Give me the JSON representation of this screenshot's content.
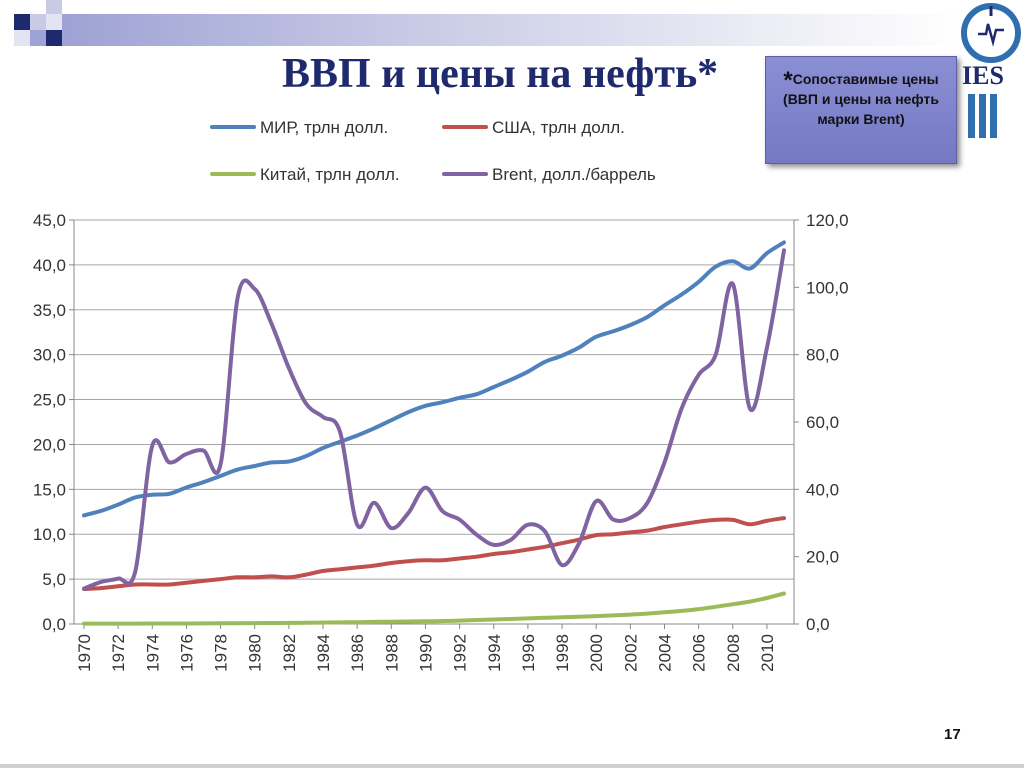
{
  "header": {
    "title": "ВВП и цены на нефть*",
    "note_star": "*",
    "note_text": "Сопоставимые цены (ВВП и цены на нефть марки Brent)",
    "logo_text": "IES",
    "page_number": "17"
  },
  "colors": {
    "world": "#4f81bd",
    "usa": "#c0504d",
    "china": "#9bbb59",
    "brent": "#8064a2",
    "title": "#1f2a6e",
    "note_bg": "#7b7fca"
  },
  "chart_data": {
    "type": "line",
    "title": "",
    "xlabel": "",
    "ylabel": "",
    "ylabel_right": "",
    "x": [
      1970,
      1971,
      1972,
      1973,
      1974,
      1975,
      1976,
      1977,
      1978,
      1979,
      1980,
      1981,
      1982,
      1983,
      1984,
      1985,
      1986,
      1987,
      1988,
      1989,
      1990,
      1991,
      1992,
      1993,
      1994,
      1995,
      1996,
      1997,
      1998,
      1999,
      2000,
      2001,
      2002,
      2003,
      2004,
      2005,
      2006,
      2007,
      2008,
      2009,
      2010,
      2011
    ],
    "x_tick_labels": [
      "1970",
      "1972",
      "1974",
      "1976",
      "1978",
      "1980",
      "1982",
      "1984",
      "1986",
      "1988",
      "1990",
      "1992",
      "1994",
      "1996",
      "1998",
      "2000",
      "2002",
      "2004",
      "2006",
      "2008",
      "2010"
    ],
    "ylim_left": [
      0,
      45
    ],
    "yticks_left": [
      "0,0",
      "5,0",
      "10,0",
      "15,0",
      "20,0",
      "25,0",
      "30,0",
      "35,0",
      "40,0",
      "45,0"
    ],
    "ylim_right": [
      0,
      120
    ],
    "yticks_right": [
      "0,0",
      "20,0",
      "40,0",
      "60,0",
      "80,0",
      "100,0",
      "120,0"
    ],
    "grid": true,
    "legend_position": "top",
    "series": [
      {
        "name": "МИР, трлн долл.",
        "axis": "left",
        "color": "#4f81bd",
        "values": [
          12.1,
          12.6,
          13.3,
          14.1,
          14.4,
          14.5,
          15.2,
          15.8,
          16.5,
          17.2,
          17.6,
          18.0,
          18.1,
          18.7,
          19.6,
          20.3,
          21.0,
          21.8,
          22.7,
          23.6,
          24.3,
          24.7,
          25.2,
          25.6,
          26.4,
          27.2,
          28.1,
          29.2,
          29.9,
          30.8,
          32.0,
          32.6,
          33.3,
          34.2,
          35.5,
          36.7,
          38.1,
          39.8,
          40.4,
          39.6,
          41.3,
          42.5
        ]
      },
      {
        "name": "США, трлн долл.",
        "axis": "left",
        "color": "#c0504d",
        "values": [
          3.9,
          4.0,
          4.2,
          4.4,
          4.4,
          4.4,
          4.6,
          4.8,
          5.0,
          5.2,
          5.2,
          5.3,
          5.2,
          5.5,
          5.9,
          6.1,
          6.3,
          6.5,
          6.8,
          7.0,
          7.1,
          7.1,
          7.3,
          7.5,
          7.8,
          8.0,
          8.3,
          8.6,
          9.0,
          9.4,
          9.9,
          10.0,
          10.2,
          10.4,
          10.8,
          11.1,
          11.4,
          11.6,
          11.6,
          11.1,
          11.5,
          11.8
        ]
      },
      {
        "name": "Китай, трлн долл.",
        "axis": "left",
        "color": "#9bbb59",
        "values": [
          0.05,
          0.05,
          0.05,
          0.05,
          0.06,
          0.06,
          0.06,
          0.07,
          0.08,
          0.09,
          0.1,
          0.11,
          0.12,
          0.14,
          0.16,
          0.18,
          0.2,
          0.23,
          0.26,
          0.28,
          0.3,
          0.33,
          0.38,
          0.44,
          0.5,
          0.56,
          0.62,
          0.69,
          0.75,
          0.81,
          0.88,
          0.96,
          1.05,
          1.16,
          1.3,
          1.46,
          1.66,
          1.92,
          2.2,
          2.5,
          2.9,
          3.4
        ]
      },
      {
        "name": "Brent, долл./баррель",
        "axis": "right",
        "color": "#8064a2",
        "values": [
          10.5,
          12.5,
          13.5,
          15.5,
          53.0,
          48.0,
          50.5,
          51.5,
          47.5,
          97.0,
          99.5,
          89.0,
          76.0,
          65.5,
          61.5,
          57.0,
          29.5,
          36.0,
          28.5,
          33.0,
          40.5,
          33.5,
          31.0,
          26.5,
          23.5,
          25.0,
          29.5,
          27.5,
          17.5,
          24.0,
          36.5,
          31.0,
          31.5,
          36.0,
          48.0,
          64.0,
          74.0,
          80.0,
          101.0,
          64.0,
          82.0,
          111.0
        ]
      }
    ]
  }
}
